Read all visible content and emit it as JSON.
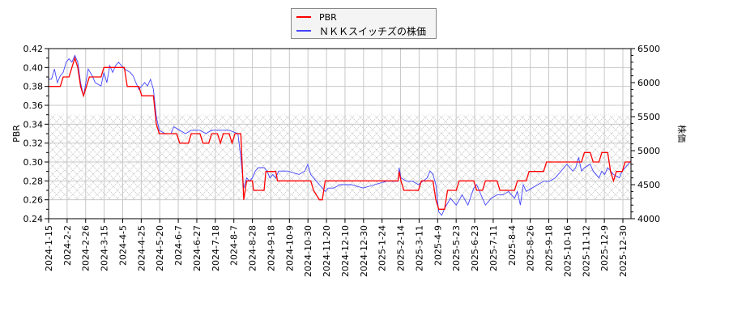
{
  "legend": {
    "items": [
      {
        "label": "PBR",
        "color": "#ff0000"
      },
      {
        "label": "ＮＫＫスイッチズの株価",
        "color": "#4444ff"
      }
    ]
  },
  "axes": {
    "left_label": "PBR",
    "right_label": "株価"
  },
  "chart_data": {
    "type": "line",
    "title": "",
    "xlabel": "",
    "ylabel": "PBR",
    "y2label": "株価",
    "ylim": [
      0.24,
      0.42
    ],
    "y2lim": [
      4000,
      6500
    ],
    "grid": true,
    "legend_position": "top-center",
    "shaded_band": {
      "ylim": [
        0.26,
        0.35
      ],
      "style": "cross-hatch"
    },
    "yticks": [
      "0.24",
      "0.26",
      "0.28",
      "0.30",
      "0.32",
      "0.34",
      "0.36",
      "0.38",
      "0.40",
      "0.42"
    ],
    "y2ticks": [
      "4000",
      "4500",
      "5000",
      "5500",
      "6000",
      "6500"
    ],
    "xticks": [
      "2024-1-15",
      "2024-2-2",
      "2024-2-26",
      "2024-3-15",
      "2024-4-5",
      "2024-4-25",
      "2024-5-20",
      "2024-6-7",
      "2024-6-27",
      "2024-7-18",
      "2024-8-7",
      "2024-8-28",
      "2024-9-18",
      "2024-10-9",
      "2024-10-30",
      "2024-11-20",
      "2024-12-10",
      "2024-12-30",
      "2025-1-24",
      "2025-2-14",
      "2025-3-11",
      "2025-4-9",
      "2025-5-23",
      "2025-6-23",
      "2025-7-11",
      "2025-8-4",
      "2025-8-26",
      "2025-9-18",
      "2025-10-16",
      "2025-11-12",
      "2025-12-9",
      "2025-12-30"
    ],
    "series": [
      {
        "name": "PBR",
        "axis": "left",
        "color": "#ff0000",
        "points": [
          [
            0,
            0.38
          ],
          [
            0.02,
            0.38
          ],
          [
            0.025,
            0.39
          ],
          [
            0.035,
            0.39
          ],
          [
            0.04,
            0.4
          ],
          [
            0.045,
            0.41
          ],
          [
            0.05,
            0.4
          ],
          [
            0.055,
            0.38
          ],
          [
            0.06,
            0.37
          ],
          [
            0.065,
            0.38
          ],
          [
            0.07,
            0.39
          ],
          [
            0.09,
            0.39
          ],
          [
            0.095,
            0.4
          ],
          [
            0.13,
            0.4
          ],
          [
            0.135,
            0.38
          ],
          [
            0.155,
            0.38
          ],
          [
            0.16,
            0.37
          ],
          [
            0.18,
            0.37
          ],
          [
            0.185,
            0.34
          ],
          [
            0.19,
            0.33
          ],
          [
            0.22,
            0.33
          ],
          [
            0.225,
            0.32
          ],
          [
            0.24,
            0.32
          ],
          [
            0.245,
            0.33
          ],
          [
            0.26,
            0.33
          ],
          [
            0.265,
            0.32
          ],
          [
            0.275,
            0.32
          ],
          [
            0.28,
            0.33
          ],
          [
            0.29,
            0.33
          ],
          [
            0.295,
            0.32
          ],
          [
            0.3,
            0.33
          ],
          [
            0.31,
            0.33
          ],
          [
            0.315,
            0.32
          ],
          [
            0.32,
            0.33
          ],
          [
            0.33,
            0.33
          ],
          [
            0.335,
            0.26
          ],
          [
            0.34,
            0.28
          ],
          [
            0.35,
            0.28
          ],
          [
            0.352,
            0.27
          ],
          [
            0.37,
            0.27
          ],
          [
            0.373,
            0.29
          ],
          [
            0.39,
            0.29
          ],
          [
            0.393,
            0.28
          ],
          [
            0.45,
            0.28
          ],
          [
            0.455,
            0.27
          ],
          [
            0.465,
            0.26
          ],
          [
            0.47,
            0.26
          ],
          [
            0.475,
            0.28
          ],
          [
            0.6,
            0.28
          ],
          [
            0.602,
            0.29
          ],
          [
            0.605,
            0.28
          ],
          [
            0.61,
            0.27
          ],
          [
            0.635,
            0.27
          ],
          [
            0.64,
            0.28
          ],
          [
            0.66,
            0.28
          ],
          [
            0.665,
            0.26
          ],
          [
            0.67,
            0.25
          ],
          [
            0.68,
            0.25
          ],
          [
            0.685,
            0.27
          ],
          [
            0.7,
            0.27
          ],
          [
            0.705,
            0.28
          ],
          [
            0.73,
            0.28
          ],
          [
            0.735,
            0.27
          ],
          [
            0.745,
            0.27
          ],
          [
            0.75,
            0.28
          ],
          [
            0.77,
            0.28
          ],
          [
            0.775,
            0.27
          ],
          [
            0.8,
            0.27
          ],
          [
            0.805,
            0.28
          ],
          [
            0.82,
            0.28
          ],
          [
            0.825,
            0.29
          ],
          [
            0.85,
            0.29
          ],
          [
            0.855,
            0.3
          ],
          [
            0.915,
            0.3
          ],
          [
            0.92,
            0.31
          ],
          [
            0.93,
            0.31
          ],
          [
            0.935,
            0.3
          ],
          [
            0.945,
            0.3
          ],
          [
            0.95,
            0.31
          ],
          [
            0.96,
            0.31
          ],
          [
            0.965,
            0.29
          ],
          [
            0.97,
            0.28
          ],
          [
            0.975,
            0.29
          ],
          [
            0.985,
            0.29
          ],
          [
            0.99,
            0.3
          ],
          [
            1.0,
            0.3
          ]
        ]
      },
      {
        "name": "ＮＫＫスイッチズの株価",
        "axis": "right",
        "color": "#4444ff",
        "points": [
          [
            0,
            6050
          ],
          [
            0.005,
            6050
          ],
          [
            0.01,
            6200
          ],
          [
            0.015,
            6000
          ],
          [
            0.02,
            6100
          ],
          [
            0.025,
            6150
          ],
          [
            0.03,
            6300
          ],
          [
            0.035,
            6350
          ],
          [
            0.04,
            6300
          ],
          [
            0.045,
            6400
          ],
          [
            0.05,
            6300
          ],
          [
            0.055,
            6000
          ],
          [
            0.06,
            5800
          ],
          [
            0.063,
            5950
          ],
          [
            0.068,
            6200
          ],
          [
            0.075,
            6100
          ],
          [
            0.08,
            6000
          ],
          [
            0.09,
            5950
          ],
          [
            0.095,
            6150
          ],
          [
            0.1,
            6000
          ],
          [
            0.105,
            6250
          ],
          [
            0.11,
            6150
          ],
          [
            0.115,
            6250
          ],
          [
            0.12,
            6300
          ],
          [
            0.13,
            6200
          ],
          [
            0.14,
            6150
          ],
          [
            0.145,
            6100
          ],
          [
            0.15,
            6000
          ],
          [
            0.155,
            5900
          ],
          [
            0.165,
            6000
          ],
          [
            0.17,
            5950
          ],
          [
            0.175,
            6050
          ],
          [
            0.18,
            5900
          ],
          [
            0.185,
            5500
          ],
          [
            0.19,
            5300
          ],
          [
            0.2,
            5250
          ],
          [
            0.21,
            5250
          ],
          [
            0.215,
            5350
          ],
          [
            0.225,
            5300
          ],
          [
            0.235,
            5250
          ],
          [
            0.245,
            5300
          ],
          [
            0.26,
            5300
          ],
          [
            0.27,
            5250
          ],
          [
            0.28,
            5300
          ],
          [
            0.3,
            5300
          ],
          [
            0.31,
            5300
          ],
          [
            0.325,
            5250
          ],
          [
            0.33,
            4900
          ],
          [
            0.335,
            4450
          ],
          [
            0.34,
            4600
          ],
          [
            0.345,
            4550
          ],
          [
            0.35,
            4600
          ],
          [
            0.355,
            4700
          ],
          [
            0.36,
            4750
          ],
          [
            0.37,
            4750
          ],
          [
            0.375,
            4700
          ],
          [
            0.38,
            4600
          ],
          [
            0.385,
            4650
          ],
          [
            0.39,
            4600
          ],
          [
            0.395,
            4700
          ],
          [
            0.41,
            4700
          ],
          [
            0.43,
            4650
          ],
          [
            0.44,
            4700
          ],
          [
            0.445,
            4800
          ],
          [
            0.45,
            4650
          ],
          [
            0.455,
            4600
          ],
          [
            0.46,
            4550
          ],
          [
            0.465,
            4500
          ],
          [
            0.47,
            4450
          ],
          [
            0.475,
            4400
          ],
          [
            0.48,
            4450
          ],
          [
            0.49,
            4450
          ],
          [
            0.5,
            4500
          ],
          [
            0.52,
            4500
          ],
          [
            0.54,
            4450
          ],
          [
            0.56,
            4500
          ],
          [
            0.58,
            4550
          ],
          [
            0.6,
            4550
          ],
          [
            0.602,
            4750
          ],
          [
            0.605,
            4600
          ],
          [
            0.615,
            4550
          ],
          [
            0.625,
            4550
          ],
          [
            0.635,
            4500
          ],
          [
            0.65,
            4600
          ],
          [
            0.655,
            4700
          ],
          [
            0.66,
            4650
          ],
          [
            0.665,
            4500
          ],
          [
            0.67,
            4100
          ],
          [
            0.675,
            4050
          ],
          [
            0.68,
            4150
          ],
          [
            0.69,
            4300
          ],
          [
            0.7,
            4200
          ],
          [
            0.71,
            4350
          ],
          [
            0.72,
            4200
          ],
          [
            0.73,
            4450
          ],
          [
            0.735,
            4500
          ],
          [
            0.74,
            4400
          ],
          [
            0.75,
            4200
          ],
          [
            0.76,
            4300
          ],
          [
            0.77,
            4350
          ],
          [
            0.78,
            4350
          ],
          [
            0.79,
            4400
          ],
          [
            0.8,
            4300
          ],
          [
            0.805,
            4400
          ],
          [
            0.81,
            4200
          ],
          [
            0.815,
            4500
          ],
          [
            0.82,
            4400
          ],
          [
            0.83,
            4450
          ],
          [
            0.84,
            4500
          ],
          [
            0.85,
            4550
          ],
          [
            0.86,
            4550
          ],
          [
            0.87,
            4600
          ],
          [
            0.875,
            4650
          ],
          [
            0.88,
            4700
          ],
          [
            0.885,
            4750
          ],
          [
            0.89,
            4800
          ],
          [
            0.9,
            4700
          ],
          [
            0.905,
            4750
          ],
          [
            0.91,
            4900
          ],
          [
            0.915,
            4700
          ],
          [
            0.92,
            4750
          ],
          [
            0.93,
            4800
          ],
          [
            0.935,
            4700
          ],
          [
            0.945,
            4600
          ],
          [
            0.95,
            4700
          ],
          [
            0.955,
            4650
          ],
          [
            0.96,
            4750
          ],
          [
            0.965,
            4700
          ],
          [
            0.97,
            4650
          ],
          [
            0.98,
            4600
          ],
          [
            0.985,
            4700
          ],
          [
            0.99,
            4750
          ],
          [
            0.995,
            4800
          ],
          [
            1.0,
            4850
          ]
        ]
      }
    ]
  }
}
